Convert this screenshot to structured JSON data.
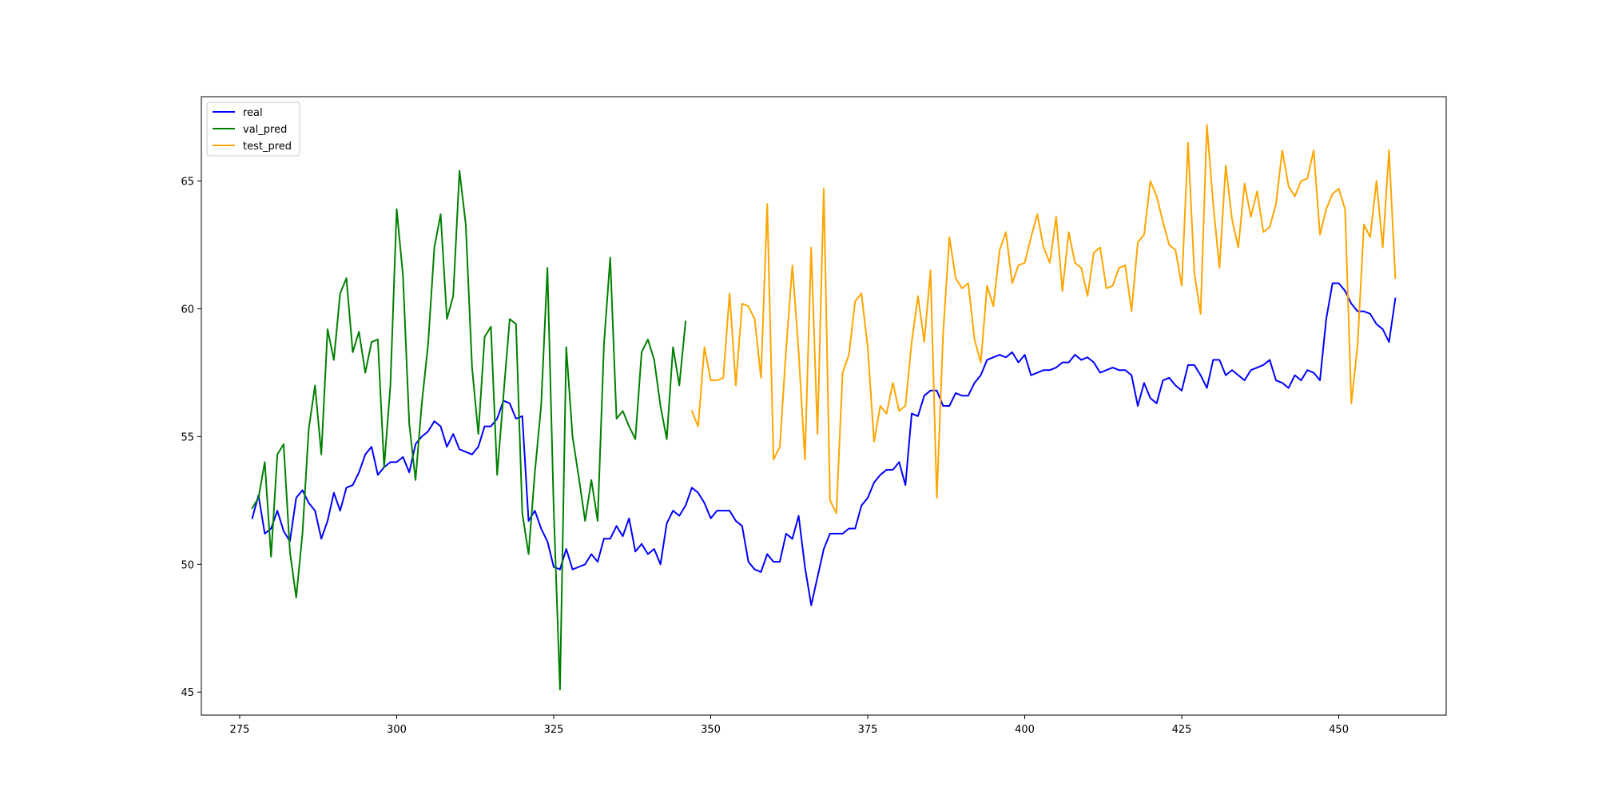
{
  "chart_data": {
    "type": "line",
    "title": "",
    "xlabel": "",
    "ylabel": "",
    "xlim": [
      268.9,
      467.1
    ],
    "ylim": [
      44.1,
      68.3
    ],
    "xticks": [
      275,
      300,
      325,
      350,
      375,
      400,
      425,
      450
    ],
    "yticks": [
      45,
      50,
      55,
      60,
      65
    ],
    "grid": false,
    "legend_position": "upper-left",
    "series": [
      {
        "name": "real",
        "color": "#0000ff",
        "x_start": 277,
        "values": [
          51.8,
          52.7,
          51.2,
          51.4,
          52.1,
          51.3,
          50.9,
          52.6,
          52.9,
          52.4,
          52.1,
          51.0,
          51.7,
          52.8,
          52.1,
          53.0,
          53.1,
          53.6,
          54.3,
          54.6,
          53.5,
          53.8,
          54.0,
          54.0,
          54.2,
          53.6,
          54.7,
          55.0,
          55.2,
          55.6,
          55.4,
          54.6,
          55.1,
          54.5,
          54.4,
          54.3,
          54.6,
          55.4,
          55.4,
          55.7,
          56.4,
          56.3,
          55.7,
          55.8,
          51.7,
          52.1,
          51.4,
          50.9,
          49.9,
          49.8,
          50.6,
          49.8,
          49.9,
          50.0,
          50.4,
          50.1,
          51.0,
          51.0,
          51.5,
          51.1,
          51.8,
          50.5,
          50.8,
          50.4,
          50.6,
          50.0,
          51.6,
          52.1,
          51.9,
          52.3,
          53.0,
          52.8,
          52.4,
          51.8,
          52.1,
          52.1,
          52.1,
          51.7,
          51.5,
          50.1,
          49.8,
          49.7,
          50.4,
          50.1,
          50.1,
          51.2,
          51.0,
          51.9,
          49.9,
          48.4,
          49.5,
          50.6,
          51.2,
          51.2,
          51.2,
          51.4,
          51.4,
          52.3,
          52.6,
          53.2,
          53.5,
          53.7,
          53.7,
          54.0,
          53.1,
          55.9,
          55.8,
          56.6,
          56.8,
          56.8,
          56.2,
          56.2,
          56.7,
          56.6,
          56.6,
          57.1,
          57.4,
          58.0,
          58.1,
          58.2,
          58.1,
          58.3,
          57.9,
          58.2,
          57.4,
          57.5,
          57.6,
          57.6,
          57.7,
          57.9,
          57.9,
          58.2,
          58.0,
          58.1,
          57.9,
          57.5,
          57.6,
          57.7,
          57.6,
          57.6,
          57.4,
          56.2,
          57.1,
          56.5,
          56.3,
          57.2,
          57.3,
          57.0,
          56.8,
          57.8,
          57.8,
          57.4,
          56.9,
          58.0,
          58.0,
          57.4,
          57.6,
          57.4,
          57.2,
          57.6,
          57.7,
          57.8,
          58.0,
          57.2,
          57.1,
          56.9,
          57.4,
          57.2,
          57.6,
          57.5,
          57.2,
          59.6,
          61.0,
          61.0,
          60.7,
          60.2,
          59.9,
          59.9,
          59.8,
          59.4,
          59.2,
          58.7,
          60.4
        ]
      },
      {
        "name": "val_pred",
        "color": "#008000",
        "x_start": 277,
        "values": [
          52.2,
          52.6,
          54.0,
          50.3,
          54.3,
          54.7,
          50.5,
          48.7,
          51.2,
          55.3,
          57.0,
          54.3,
          59.2,
          58.0,
          60.6,
          61.2,
          58.3,
          59.1,
          57.5,
          58.7,
          58.8,
          53.8,
          57.0,
          63.9,
          61.3,
          55.5,
          53.3,
          56.3,
          58.6,
          62.4,
          63.7,
          59.6,
          60.5,
          65.4,
          63.3,
          57.7,
          55.1,
          58.9,
          59.3,
          53.5,
          56.6,
          59.6,
          59.4,
          52.0,
          50.4,
          53.6,
          56.2,
          61.6,
          52.2,
          45.1,
          58.5,
          55.0,
          53.4,
          51.7,
          53.3,
          51.7,
          58.6,
          62.0,
          55.7,
          56.0,
          55.4,
          54.9,
          58.3,
          58.8,
          58.0,
          56.2,
          54.9,
          58.5,
          57.0,
          59.5
        ]
      },
      {
        "name": "test_pred",
        "color": "#ffa500",
        "x_start": 347,
        "values": [
          56.0,
          55.4,
          58.5,
          57.2,
          57.2,
          57.3,
          60.6,
          57.0,
          60.2,
          60.1,
          59.6,
          57.3,
          64.1,
          54.1,
          54.6,
          58.4,
          61.7,
          58.3,
          54.1,
          62.4,
          55.1,
          64.7,
          52.5,
          52.0,
          57.5,
          58.2,
          60.3,
          60.6,
          58.5,
          54.8,
          56.2,
          55.9,
          57.1,
          56.0,
          56.2,
          58.7,
          60.5,
          58.7,
          61.5,
          52.6,
          59.0,
          62.8,
          61.2,
          60.8,
          61.0,
          58.8,
          57.9,
          60.9,
          60.1,
          62.3,
          63.0,
          61.0,
          61.7,
          61.8,
          62.8,
          63.7,
          62.4,
          61.8,
          63.6,
          60.7,
          63.0,
          61.8,
          61.6,
          60.5,
          62.2,
          62.4,
          60.8,
          60.9,
          61.6,
          61.7,
          59.9,
          62.6,
          62.9,
          65.0,
          64.4,
          63.4,
          62.5,
          62.3,
          60.9,
          66.5,
          61.4,
          59.8,
          67.2,
          64.1,
          61.6,
          65.6,
          63.5,
          62.4,
          64.9,
          63.6,
          64.6,
          63.0,
          63.2,
          64.1,
          66.2,
          64.8,
          64.4,
          65.0,
          65.1,
          66.2,
          62.9,
          63.9,
          64.5,
          64.7,
          63.9,
          56.3,
          58.6,
          63.3,
          62.8,
          65.0,
          62.4,
          66.2,
          61.2
        ]
      }
    ]
  }
}
